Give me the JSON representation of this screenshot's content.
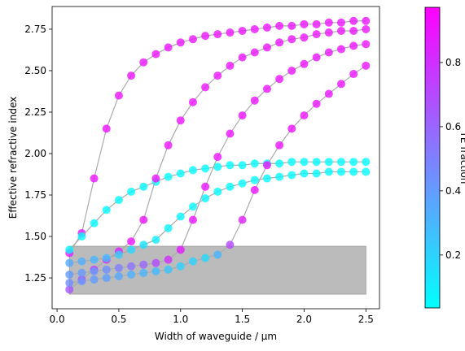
{
  "chart_data": {
    "type": "scatter",
    "x_label": "Width of waveguide / µm",
    "y_label": "Effective refractive index",
    "colorbar_label": "TE fraction",
    "colormap": "cool",
    "clim": [
      0.035,
      0.972
    ],
    "cticks": [
      0.2,
      0.4,
      0.6,
      0.8
    ],
    "xlim": [
      -0.04,
      2.61
    ],
    "ylim": [
      1.064,
      2.887
    ],
    "xticks": [
      {
        "value": 0,
        "label": "0.0"
      },
      0.5,
      {
        "value": 1,
        "label": "1.0"
      },
      1.5,
      {
        "value": 2,
        "label": "2.0"
      },
      2.5
    ],
    "yticks": [
      1.25,
      {
        "value": 1.5,
        "label": "1.50"
      },
      1.75,
      {
        "value": 2,
        "label": "2.00"
      },
      2.25,
      {
        "value": 2.5,
        "label": "2.50"
      },
      2.75
    ],
    "shaded_region": {
      "x": [
        0.1,
        2.5
      ],
      "y": [
        1.152,
        1.441
      ],
      "color": "#bbbbbb"
    },
    "x": [
      0.1,
      0.2,
      0.3,
      0.4,
      0.5,
      0.6,
      0.7,
      0.8,
      0.9,
      1.0,
      1.1,
      1.2,
      1.3,
      1.4,
      1.5,
      1.6,
      1.7,
      1.8,
      1.9,
      2.0,
      2.1,
      2.2,
      2.3,
      2.4,
      2.5
    ],
    "series": [
      {
        "values": [
          1.4,
          1.52,
          1.85,
          2.15,
          2.35,
          2.47,
          2.55,
          2.6,
          2.64,
          2.67,
          2.69,
          2.71,
          2.72,
          2.73,
          2.74,
          2.75,
          2.76,
          2.77,
          2.77,
          2.78,
          2.78,
          2.79,
          2.79,
          2.8,
          2.8
        ],
        "te_fraction": [
          0.85,
          0.88,
          0.9,
          0.9,
          0.9,
          0.9,
          0.9,
          0.9,
          0.9,
          0.9,
          0.9,
          0.9,
          0.9,
          0.9,
          0.9,
          0.9,
          0.9,
          0.9,
          0.9,
          0.9,
          0.9,
          0.9,
          0.9,
          0.9,
          0.9
        ]
      },
      {
        "values": [
          1.42,
          1.5,
          1.58,
          1.66,
          1.72,
          1.77,
          1.8,
          1.83,
          1.86,
          1.88,
          1.9,
          1.91,
          1.92,
          1.93,
          1.93,
          1.94,
          1.94,
          1.94,
          1.95,
          1.95,
          1.95,
          1.95,
          1.95,
          1.95,
          1.95
        ],
        "te_fraction": [
          0.08,
          0.06,
          0.05,
          0.05,
          0.05,
          0.05,
          0.05,
          0.05,
          0.05,
          0.05,
          0.05,
          0.05,
          0.05,
          0.05,
          0.05,
          0.05,
          0.05,
          0.05,
          0.05,
          0.05,
          0.05,
          0.05,
          0.05,
          0.05,
          0.05
        ]
      },
      {
        "values": [
          1.18,
          1.24,
          1.3,
          1.36,
          1.41,
          1.47,
          1.6,
          1.85,
          2.05,
          2.2,
          2.31,
          2.4,
          2.47,
          2.53,
          2.58,
          2.61,
          2.64,
          2.67,
          2.69,
          2.7,
          2.72,
          2.73,
          2.74,
          2.74,
          2.75
        ],
        "te_fraction": [
          0.65,
          0.7,
          0.75,
          0.8,
          0.85,
          0.9,
          0.9,
          0.9,
          0.9,
          0.9,
          0.9,
          0.9,
          0.9,
          0.9,
          0.9,
          0.9,
          0.9,
          0.9,
          0.9,
          0.9,
          0.9,
          0.9,
          0.9,
          0.9,
          0.9
        ]
      },
      {
        "values": [
          1.34,
          1.35,
          1.36,
          1.37,
          1.39,
          1.42,
          1.45,
          1.48,
          1.55,
          1.62,
          1.68,
          1.73,
          1.77,
          1.8,
          1.82,
          1.84,
          1.85,
          1.86,
          1.87,
          1.88,
          1.88,
          1.89,
          1.89,
          1.89,
          1.89
        ],
        "te_fraction": [
          0.35,
          0.33,
          0.3,
          0.27,
          0.22,
          0.18,
          0.14,
          0.1,
          0.08,
          0.07,
          0.06,
          0.06,
          0.05,
          0.05,
          0.05,
          0.05,
          0.05,
          0.05,
          0.05,
          0.05,
          0.05,
          0.05,
          0.05,
          0.05,
          0.05
        ]
      },
      {
        "values": [
          1.27,
          1.28,
          1.29,
          1.3,
          1.31,
          1.32,
          1.33,
          1.34,
          1.36,
          1.42,
          1.6,
          1.8,
          1.98,
          2.12,
          2.23,
          2.32,
          2.39,
          2.45,
          2.5,
          2.54,
          2.58,
          2.61,
          2.63,
          2.65,
          2.66
        ],
        "te_fraction": [
          0.4,
          0.4,
          0.42,
          0.45,
          0.5,
          0.55,
          0.6,
          0.7,
          0.8,
          0.88,
          0.9,
          0.9,
          0.9,
          0.9,
          0.9,
          0.9,
          0.9,
          0.9,
          0.9,
          0.9,
          0.9,
          0.9,
          0.9,
          0.9,
          0.9
        ]
      },
      {
        "values": [
          1.22,
          1.23,
          1.24,
          1.25,
          1.26,
          1.27,
          1.28,
          1.29,
          1.3,
          1.32,
          1.35,
          1.37,
          1.39,
          1.45,
          1.6,
          1.78,
          1.93,
          2.05,
          2.15,
          2.23,
          2.3,
          2.36,
          2.42,
          2.48,
          2.53
        ],
        "te_fraction": [
          0.45,
          0.42,
          0.4,
          0.38,
          0.35,
          0.32,
          0.3,
          0.28,
          0.25,
          0.2,
          0.2,
          0.18,
          0.3,
          0.7,
          0.85,
          0.9,
          0.9,
          0.9,
          0.9,
          0.9,
          0.9,
          0.9,
          0.9,
          0.9,
          0.9
        ]
      }
    ]
  }
}
